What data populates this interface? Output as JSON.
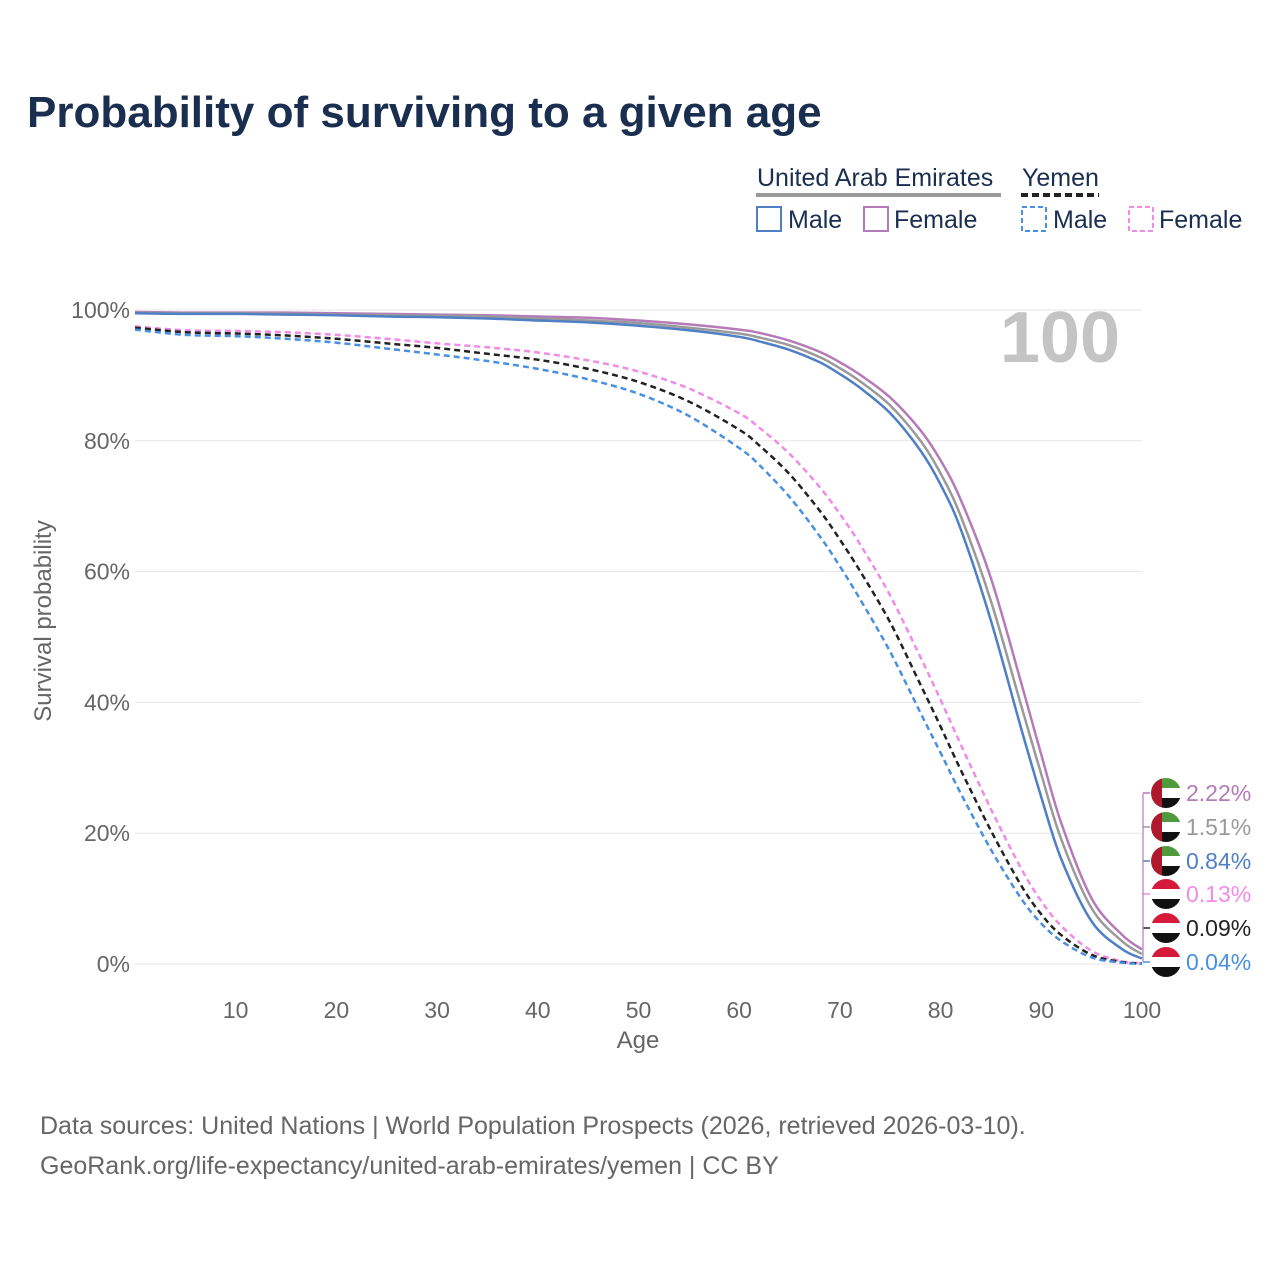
{
  "title": "Probability of surviving to a given age",
  "frame_age": "100",
  "source": {
    "line1": "Data sources: United Nations | World Population Prospects (2026, retrieved 2026-03-10).",
    "line2": "GeoRank.org/life-expectancy/united-arab-emirates/yemen | CC BY"
  },
  "legend": {
    "groups": [
      {
        "country": "United Arab Emirates",
        "line_color": "#9a9a9a",
        "dash": "solid",
        "items": [
          {
            "label": "Male",
            "color": "#4f7fc4"
          },
          {
            "label": "Female",
            "color": "#b57bb9"
          }
        ]
      },
      {
        "country": "Yemen",
        "line_color": "#222222",
        "dash": "dashed",
        "items": [
          {
            "label": "Male",
            "color": "#4a90e2"
          },
          {
            "label": "Female",
            "color": "#f08ce8"
          }
        ]
      }
    ]
  },
  "end_labels": [
    {
      "text": "2.22%",
      "color": "#b57bb9",
      "flag": "uae"
    },
    {
      "text": "1.51%",
      "color": "#9a9a9a",
      "flag": "uae"
    },
    {
      "text": "0.84%",
      "color": "#4f7fc4",
      "flag": "uae"
    },
    {
      "text": "0.13%",
      "color": "#f08ce8",
      "flag": "yemen"
    },
    {
      "text": "0.09%",
      "color": "#222222",
      "flag": "yemen"
    },
    {
      "text": "0.04%",
      "color": "#4a90e2",
      "flag": "yemen"
    }
  ],
  "chart_data": {
    "type": "line",
    "title": "Probability of surviving to a given age",
    "xlabel": "Age",
    "ylabel": "Survival probability",
    "xlim": [
      0,
      100
    ],
    "ylim": [
      0,
      100
    ],
    "xticks": [
      10,
      20,
      30,
      40,
      50,
      60,
      70,
      80,
      90,
      100
    ],
    "yticks": [
      0,
      20,
      40,
      60,
      80,
      100
    ],
    "ytick_labels": [
      "0%",
      "20%",
      "40%",
      "60%",
      "80%",
      "100%"
    ],
    "x": [
      0,
      5,
      10,
      15,
      20,
      25,
      30,
      35,
      40,
      45,
      50,
      55,
      60,
      62,
      65,
      68,
      70,
      72,
      75,
      78,
      80,
      82,
      85,
      88,
      90,
      92,
      95,
      98,
      100
    ],
    "series": [
      {
        "name": "United Arab Emirates — Female",
        "color": "#b57bb9",
        "dash": "solid",
        "values": [
          99.7,
          99.6,
          99.6,
          99.6,
          99.5,
          99.4,
          99.3,
          99.2,
          99.0,
          98.8,
          98.4,
          97.8,
          97.0,
          96.5,
          95.3,
          93.6,
          92.0,
          90.1,
          86.6,
          81.6,
          77.0,
          71.0,
          59.0,
          43.0,
          32.0,
          21.5,
          10.0,
          4.5,
          2.22
        ]
      },
      {
        "name": "United Arab Emirates — Both",
        "color": "#9a9a9a",
        "dash": "solid",
        "values": [
          99.6,
          99.5,
          99.5,
          99.4,
          99.3,
          99.2,
          99.1,
          99.0,
          98.7,
          98.4,
          98.0,
          97.3,
          96.4,
          95.8,
          94.6,
          92.8,
          91.1,
          89.1,
          85.4,
          80.0,
          75.0,
          68.5,
          55.5,
          39.5,
          29.0,
          19.0,
          8.5,
          3.5,
          1.51
        ]
      },
      {
        "name": "United Arab Emirates — Male",
        "color": "#4f7fc4",
        "dash": "solid",
        "values": [
          99.5,
          99.4,
          99.4,
          99.3,
          99.2,
          99.0,
          98.9,
          98.7,
          98.4,
          98.1,
          97.6,
          96.9,
          95.9,
          95.2,
          93.9,
          92.0,
          90.2,
          88.1,
          84.2,
          78.5,
          73.3,
          66.5,
          52.5,
          36.0,
          25.5,
          16.0,
          6.5,
          2.3,
          0.84
        ]
      },
      {
        "name": "Yemen — Female",
        "color": "#f08ce8",
        "dash": "dashed",
        "values": [
          97.5,
          96.9,
          96.8,
          96.6,
          96.2,
          95.6,
          94.9,
          94.3,
          93.5,
          92.3,
          90.6,
          88.0,
          84.2,
          82.0,
          78.0,
          72.9,
          68.8,
          64.2,
          56.3,
          46.9,
          40.4,
          33.6,
          23.7,
          14.6,
          9.6,
          5.8,
          2.0,
          0.4,
          0.13
        ]
      },
      {
        "name": "Yemen — Both",
        "color": "#222222",
        "dash": "dashed",
        "values": [
          97.3,
          96.6,
          96.4,
          96.1,
          95.6,
          94.9,
          94.2,
          93.3,
          92.4,
          91.0,
          89.0,
          86.0,
          81.7,
          79.3,
          74.9,
          69.3,
          64.9,
          60.1,
          52.2,
          42.7,
          36.3,
          29.7,
          20.4,
          12.0,
          7.6,
          4.4,
          1.4,
          0.3,
          0.09
        ]
      },
      {
        "name": "Yemen — Male",
        "color": "#4a90e2",
        "dash": "dashed",
        "values": [
          97.0,
          96.2,
          96.0,
          95.6,
          95.0,
          94.1,
          93.2,
          92.2,
          91.0,
          89.4,
          87.2,
          83.8,
          78.9,
          76.3,
          71.4,
          65.4,
          60.8,
          55.8,
          47.7,
          38.4,
          32.3,
          26.1,
          17.5,
          10.0,
          6.2,
          3.5,
          1.0,
          0.2,
          0.04
        ]
      }
    ]
  }
}
